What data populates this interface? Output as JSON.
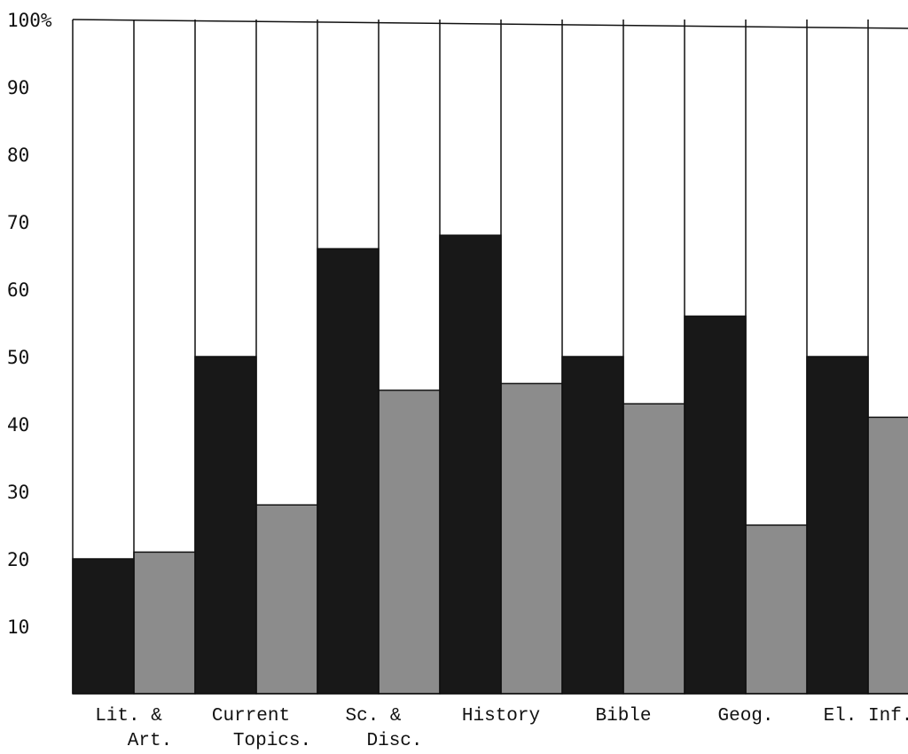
{
  "chart_data": {
    "type": "bar",
    "title": "",
    "xlabel": "",
    "ylabel": "",
    "ylim": [
      0,
      100
    ],
    "y_ticks": [
      "10",
      "20",
      "30",
      "40",
      "50",
      "60",
      "70",
      "80",
      "90",
      "100%"
    ],
    "grid": false,
    "legend": "none",
    "categories": [
      [
        "Lit. &",
        "Art."
      ],
      [
        "Current",
        "Topics."
      ],
      [
        "Sc. &",
        "Disc."
      ],
      [
        "History"
      ],
      [
        "Bible"
      ],
      [
        "Geog."
      ],
      [
        "El. Inf."
      ]
    ],
    "series": [
      {
        "values": [
          20,
          50,
          66,
          68,
          50,
          56,
          50
        ]
      },
      {
        "values": [
          21,
          28,
          45,
          46,
          43,
          25,
          41
        ]
      }
    ],
    "colors": {
      "series_dark": "#181818",
      "series_light": "#8c8c8c",
      "line": "#111111"
    }
  }
}
